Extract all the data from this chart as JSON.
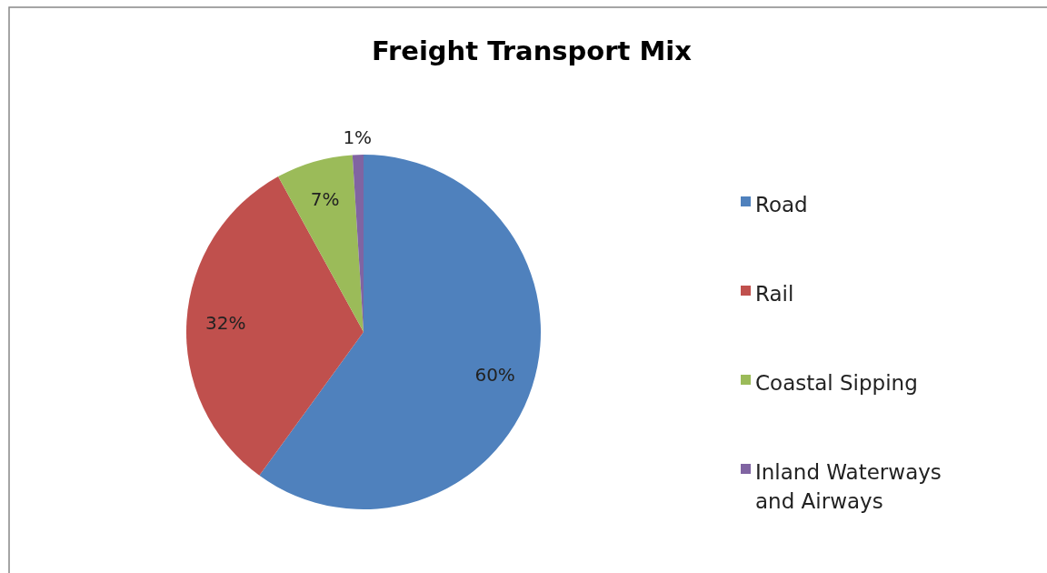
{
  "chart_data": {
    "type": "pie",
    "title": "Freight Transport Mix",
    "categories": [
      "Road",
      "Rail",
      "Coastal Sipping",
      "Inland Waterways and Airways"
    ],
    "values": [
      60,
      32,
      7,
      1
    ],
    "colors": [
      "#4f81bd",
      "#c0504d",
      "#9bbb59",
      "#8064a2"
    ],
    "value_labels": [
      "60%",
      "32%",
      "7%",
      "1%"
    ],
    "legend": "right"
  }
}
